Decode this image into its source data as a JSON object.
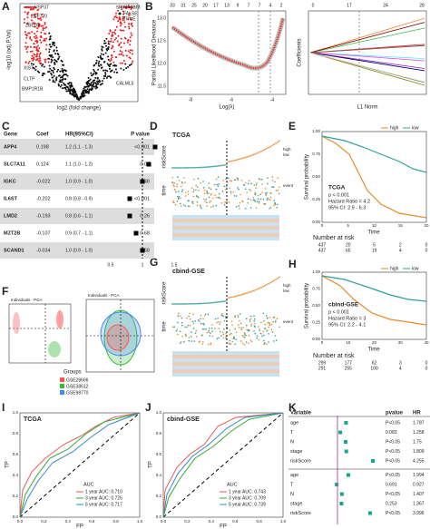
{
  "panels": {
    "A": {
      "letter": "A",
      "ylabel": "-log10 (adj.P.Val)",
      "xlabel": "log2 (fold change)",
      "legend_title": "significant",
      "legend": [
        "FALSE",
        "TRUE"
      ],
      "genes": [
        "USP37",
        "ZNF770",
        "ZBED6",
        "XIST",
        "CLTP",
        "BMP1R1B",
        "CALML5"
      ]
    },
    "B": {
      "letter": "B",
      "ylabel": "Partial Likelihood Deviance",
      "xlabel": "Log(λ)",
      "top_ticks": [
        "33",
        "31",
        "25",
        "20",
        "17",
        "13",
        "9",
        "7",
        "7",
        "4",
        "2"
      ],
      "y_ticks": [
        "13.0",
        "12.5",
        "12.0",
        "11.5"
      ],
      "x_ticks": [
        "-8",
        "-6",
        "-4"
      ],
      "right_ylabel": "Coefficients",
      "right_xlabel": "L1 Norm",
      "right_top_ticks": [
        "0",
        "17",
        "24",
        "28"
      ]
    },
    "C": {
      "letter": "C",
      "columns": [
        "Gene",
        "Coef",
        "HR(95%CI)",
        "P value"
      ],
      "x_ticks": [
        "0.5",
        "1",
        "1.5"
      ],
      "rows": [
        {
          "gene": "APP4",
          "coef": "0.198",
          "hr": 1.2,
          "hr_label": "1.2 (1.1 - 1.3)",
          "p": "<0.001"
        },
        {
          "gene": "SLC7A11",
          "coef": "0.124",
          "hr": 1.1,
          "hr_label": "1.1 (1.0 - 1.2)",
          "p": "0.02"
        },
        {
          "gene": "IGKC",
          "coef": "-0.022",
          "hr": 1.0,
          "hr_label": "1.0 (0.9 - 1.0)",
          "p": "0.48"
        },
        {
          "gene": "IL6ST",
          "coef": "-0.202",
          "hr": 0.8,
          "hr_label": "0.8 (0.8 - 0.9)",
          "p": "<0.001"
        },
        {
          "gene": "LMD2",
          "coef": "-0.193",
          "hr": 0.8,
          "hr_label": "0.8 (0.6 - 1.1)",
          "p": "0.26"
        },
        {
          "gene": "MZT2B",
          "coef": "-0.107",
          "hr": 0.9,
          "hr_label": "0.9 (0.7 - 1.1)",
          "p": "0.68"
        },
        {
          "gene": "SCAND1",
          "coef": "-0.034",
          "hr": 1.0,
          "hr_label": "1.0 (0.9 - 1.0)",
          "p": "0.68"
        }
      ]
    },
    "D": {
      "letter": "D",
      "title": "TCGA",
      "label1": "riskScore",
      "label2": "time",
      "legend": [
        "high",
        "low"
      ],
      "event": "event"
    },
    "E": {
      "letter": "E",
      "legend": [
        "high",
        "low"
      ],
      "title": "TCGA",
      "p": "p < 0.001",
      "hr": "Hazard Ratio = 4.2",
      "ci": "95% CI: 2.9 - 6.3",
      "ylabel": "Survival probability",
      "xlabel": "Time",
      "y_ticks": [
        "1.00",
        "0.75",
        "0.50",
        "0.25",
        "0.00"
      ],
      "x_ticks": [
        "0",
        "5",
        "10",
        "15",
        "20"
      ],
      "risk_title": "Number at risk",
      "risk_rows": [
        [
          "437",
          "20",
          "5",
          "2",
          "0"
        ],
        [
          "437",
          "65",
          "19",
          "4",
          "0"
        ]
      ]
    },
    "F": {
      "letter": "F",
      "title1": "Individuals - PCA",
      "title2": "Individuals - PCA",
      "groups_title": "Groups",
      "groups": [
        "GSE28666",
        "GSE38612",
        "GSE98770"
      ]
    },
    "G": {
      "letter": "G",
      "title": "cbind-GSE",
      "label1": "riskScore",
      "label2": "time",
      "legend": [
        "high",
        "low"
      ],
      "event": "event"
    },
    "H": {
      "letter": "H",
      "legend": [
        "high",
        "low"
      ],
      "title": "cbind-GSE",
      "p": "p < 0.001",
      "hr": "Hazard Ratio = 3",
      "ci": "95% CI: 2.2 - 4.1",
      "ylabel": "Survival probability",
      "xlabel": "Time",
      "y_ticks": [
        "1.00",
        "0.75",
        "0.50",
        "0.25",
        "0.00"
      ],
      "x_ticks": [
        "0",
        "10",
        "20",
        "30",
        "40"
      ],
      "risk_title": "Number at risk",
      "risk_rows": [
        [
          "299",
          "177",
          "62",
          "3",
          "0"
        ],
        [
          "291",
          "255",
          "100",
          "4",
          "0"
        ]
      ]
    },
    "I": {
      "letter": "I",
      "title": "TCGA",
      "ylabel": "TP",
      "xlabel": "FP",
      "ticks": [
        "0.0",
        "0.2",
        "0.4",
        "0.6",
        "0.8",
        "1.0"
      ],
      "auc_title": "AUC",
      "auc": [
        "1 year AUC: 0.710",
        "3 year AUC: 0.725",
        "5 year AUC: 0.717"
      ]
    },
    "J": {
      "letter": "J",
      "title": "cbind-GSE",
      "ylabel": "TP",
      "xlabel": "FP",
      "ticks": [
        "0.0",
        "0.2",
        "0.4",
        "0.6",
        "0.8",
        "1.0"
      ],
      "auc_title": "AUC",
      "auc": [
        "1 year AUC: 0.743",
        "3 year AUC: 0.709",
        "5 year AUC: 0.739"
      ]
    },
    "K": {
      "letter": "K",
      "columns": [
        "Variable",
        "pvalue",
        "HR"
      ],
      "rows": [
        {
          "variable": "age",
          "p": "P<0.05",
          "hr": 1.787
        },
        {
          "variable": "T",
          "p": "0.083",
          "hr": 1.258
        },
        {
          "variable": "N",
          "p": "P<0.05",
          "hr": 1.75
        },
        {
          "variable": "stage",
          "p": "P<0.05",
          "hr": 1.809
        },
        {
          "variable": "riskScore",
          "p": "P<0.05",
          "hr": 4.255
        },
        {
          "variable": "age",
          "p": "P<0.05",
          "hr": 1.994
        },
        {
          "variable": "T",
          "p": "0.691",
          "hr": 0.927
        },
        {
          "variable": "N",
          "p": "P<0.05",
          "hr": 1.407
        },
        {
          "variable": "stage",
          "p": "0.253",
          "hr": 1.367
        },
        {
          "variable": "riskScore",
          "p": "P<0.05",
          "hr": 3.996
        }
      ]
    }
  }
}
